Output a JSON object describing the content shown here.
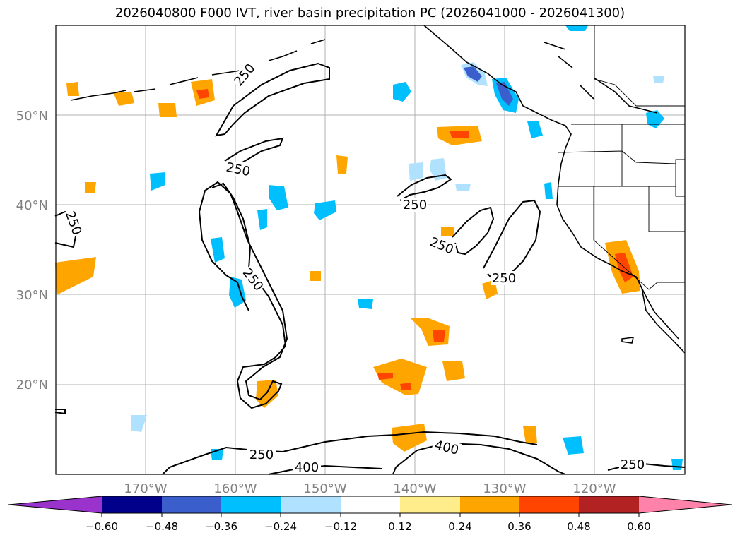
{
  "title": "2026040800 F000 IVT, river basin precipitation PC (2026041000 - 2026041300)",
  "map": {
    "lat_labels": [
      "50°N",
      "40°N",
      "30°N",
      "20°N"
    ],
    "lon_labels": [
      "170°W",
      "160°W",
      "150°W",
      "140°W",
      "130°W",
      "120°W"
    ],
    "contour_labels": [
      "250",
      "250",
      "250",
      "250",
      "250",
      "250",
      "250",
      "250",
      "400",
      "400",
      "250"
    ]
  },
  "colorbar": {
    "ticks": [
      "−0.60",
      "−0.48",
      "−0.36",
      "−0.24",
      "−0.12",
      "0.12",
      "0.24",
      "0.36",
      "0.48",
      "0.60"
    ],
    "colors": [
      "#9933cc",
      "#00008b",
      "#3a5fcd",
      "#00bfff",
      "#b0e2ff",
      "#ffffff",
      "#ffec8b",
      "#ffa500",
      "#ff4500",
      "#b22222",
      "#ff82ab"
    ]
  }
}
